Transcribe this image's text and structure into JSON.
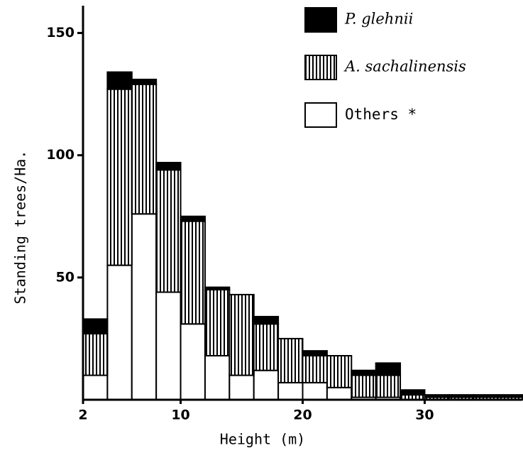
{
  "chart_data": {
    "type": "histogram",
    "xlabel": "Height (m)",
    "ylabel": "Standing trees/Ha.",
    "bins": [
      2,
      4,
      6,
      8,
      10,
      12,
      14,
      16,
      18,
      20,
      22,
      24,
      26,
      28,
      30,
      32,
      34,
      36,
      38
    ],
    "series": [
      {
        "name": "Others *",
        "color": "#ffffff",
        "values": [
          10,
          55,
          76,
          44,
          31,
          18,
          10,
          12,
          7,
          7,
          5,
          1,
          1,
          0,
          0,
          0,
          0,
          0
        ]
      },
      {
        "name": "A. sachalinensis",
        "color": "#000000",
        "pattern": "vertical-lines",
        "values": [
          17,
          72,
          53,
          50,
          42,
          27,
          33,
          19,
          18,
          11,
          13,
          9,
          9,
          2,
          1,
          1,
          1,
          1
        ]
      },
      {
        "name": "P. glehnii",
        "color": "#000000",
        "values": [
          6,
          7,
          2,
          3,
          2,
          1,
          0,
          3,
          0,
          2,
          0,
          2,
          5,
          2,
          1,
          1,
          1,
          1
        ]
      }
    ],
    "xlim": [
      2,
      38
    ],
    "ylim": [
      0,
      160
    ],
    "xticks": [
      2,
      10,
      20,
      30
    ],
    "yticks": [
      50,
      100,
      150
    ],
    "legend": "top-right"
  }
}
